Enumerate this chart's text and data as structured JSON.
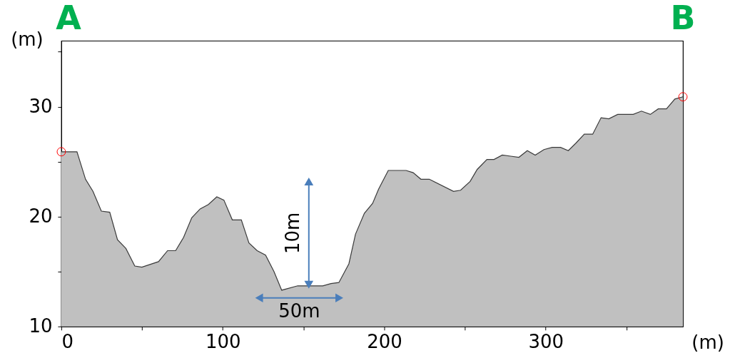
{
  "chart_data": {
    "type": "area",
    "xlabel": "(m)",
    "ylabel": "(m)",
    "xlim": [
      0,
      385
    ],
    "ylim": [
      10,
      36
    ],
    "xticks": [
      0,
      {
        "value": 50,
        "label": null
      },
      100,
      {
        "value": 150,
        "label": null
      },
      200,
      {
        "value": 250,
        "label": null
      },
      300,
      {
        "value": 350,
        "label": null
      }
    ],
    "yticks": [
      10,
      {
        "value": 15,
        "label": null
      },
      20,
      {
        "value": 25,
        "label": null
      },
      30,
      {
        "value": 35,
        "label": null
      }
    ],
    "grid": false,
    "series": [
      {
        "color": "#c0c0c0",
        "x": [
          0,
          9.7,
          15,
          19.6,
          24.8,
          30,
          34.8,
          40,
          45.5,
          49.9,
          60.2,
          65.8,
          70.8,
          75.7,
          80.8,
          86,
          91.1,
          96.3,
          100.7,
          105.9,
          111.5,
          116.2,
          121.3,
          126.5,
          131.7,
          136.5,
          146.4,
          161.9,
          167,
          171.9,
          175.2,
          178.1,
          182.2,
          187.7,
          192.8,
          196.5,
          202.5,
          213.5,
          217.9,
          222.7,
          227.9,
          242.9,
          247.3,
          253.2,
          257.6,
          263.6,
          268,
          273.1,
          278.3,
          283.4,
          288.6,
          293.5,
          298.9,
          304,
          309.2,
          314,
          318.8,
          323.9,
          329.1,
          334.3,
          339.1,
          344.6,
          354.2,
          359.3,
          364.8,
          369.7,
          374.8,
          380,
          385
        ],
        "values": [
          25.9,
          25.9,
          23.4,
          22.3,
          20.5,
          20.4,
          17.9,
          17.1,
          15.5,
          15.4,
          15.9,
          16.9,
          16.9,
          18.1,
          19.9,
          20.7,
          21.1,
          21.8,
          21.5,
          19.7,
          19.7,
          17.6,
          16.9,
          16.5,
          15.0,
          13.3,
          13.7,
          13.7,
          13.9,
          14.0,
          14.9,
          15.7,
          18.4,
          20.3,
          21.2,
          22.5,
          24.2,
          24.2,
          24.0,
          23.4,
          23.4,
          22.3,
          22.4,
          23.2,
          24.3,
          25.2,
          25.2,
          25.6,
          25.5,
          25.4,
          26.0,
          25.6,
          26.1,
          26.3,
          26.3,
          26.0,
          26.7,
          27.5,
          27.5,
          29.0,
          28.9,
          29.3,
          29.3,
          29.6,
          29.3,
          29.8,
          29.8,
          30.7,
          30.9
        ]
      },
      {
        "type": "scatter",
        "color": "#ff0000",
        "marker": "circle",
        "x": [
          0,
          385
        ],
        "values": [
          25.9,
          30.9
        ]
      },
      {
        "type": "line",
        "color": "#4a7ebb",
        "marker": "triangle",
        "x": [
          153.3,
          153.3
        ],
        "values": [
          13.8,
          23.2
        ]
      },
      {
        "type": "line",
        "color": "#4a7ebb",
        "marker": "triangle",
        "x": [
          122.5,
          172.2
        ],
        "values": [
          12.6,
          12.6
        ]
      }
    ],
    "annotations": [
      "A",
      "B",
      "10m",
      "50m"
    ]
  }
}
